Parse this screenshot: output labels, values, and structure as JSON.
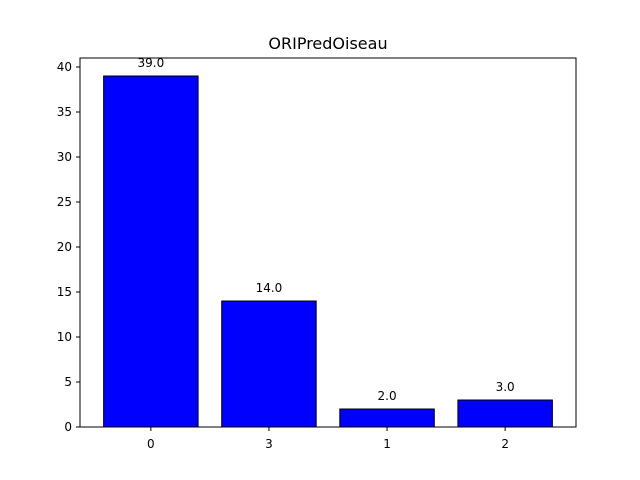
{
  "chart_data": {
    "type": "bar",
    "title": "ORIPredOiseau",
    "xlabel": "",
    "ylabel": "",
    "categories": [
      "0",
      "3",
      "1",
      "2"
    ],
    "values": [
      39.0,
      14.0,
      2.0,
      3.0
    ],
    "value_labels": [
      "39.0",
      "14.0",
      "2.0",
      "3.0"
    ],
    "yticks": [
      0,
      5,
      10,
      15,
      20,
      25,
      30,
      35,
      40
    ],
    "ylim": [
      0,
      41
    ],
    "grid": false,
    "bar_color": "#0000ff",
    "edge_color": "#000000"
  }
}
